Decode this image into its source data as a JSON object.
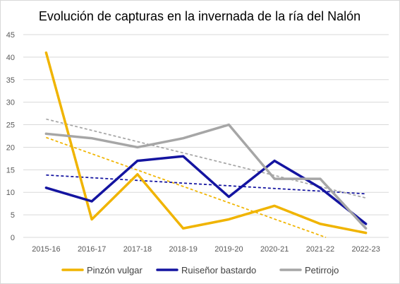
{
  "chart_data": {
    "type": "line",
    "title": "Evolución de capturas en la invernada de la ría del Nalón",
    "xlabel": "",
    "ylabel": "",
    "categories": [
      "2015-16",
      "2016-17",
      "2017-18",
      "2018-19",
      "2019-20",
      "2020-21",
      "2021-22",
      "2022-23"
    ],
    "ylim": [
      0,
      45
    ],
    "yticks": [
      0,
      5,
      10,
      15,
      20,
      25,
      30,
      35,
      40,
      45
    ],
    "grid": true,
    "legend_position": "bottom",
    "series": [
      {
        "name": "Pinzón vulgar",
        "color": "#f0b400",
        "values": [
          41,
          4,
          14,
          2,
          4,
          7,
          3,
          1
        ],
        "trendline": true
      },
      {
        "name": "Ruiseñor bastardo",
        "color": "#1414a0",
        "values": [
          11,
          8,
          17,
          18,
          9,
          17,
          11,
          3
        ],
        "trendline": true
      },
      {
        "name": "Petirrojo",
        "color": "#a6a6a6",
        "values": [
          23,
          22,
          20,
          22,
          25,
          13,
          13,
          2
        ],
        "trendline": true
      }
    ]
  }
}
